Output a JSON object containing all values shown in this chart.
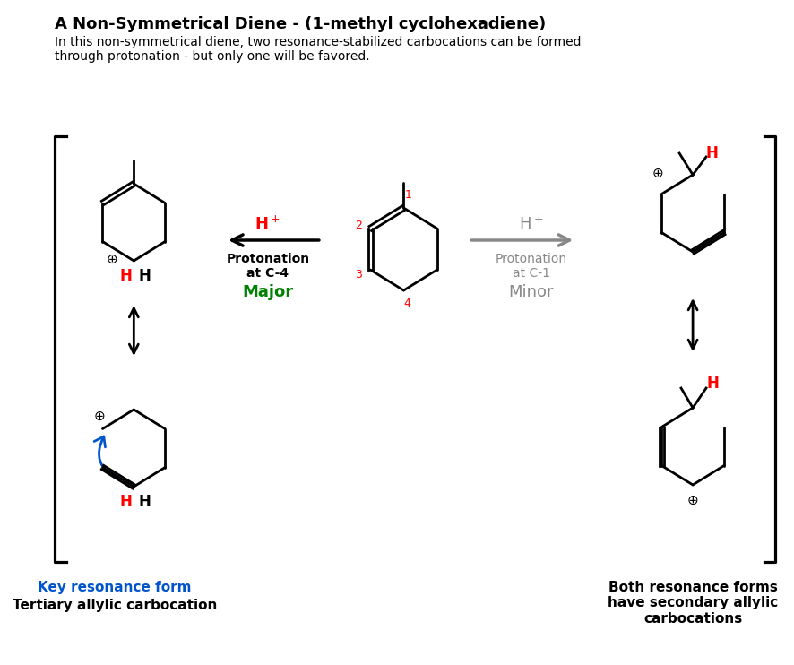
{
  "title": "A Non-Symmetrical Diene - (1-methyl cyclohexadiene)",
  "subtitle": "In this non-symmetrical diene, two resonance-stabilized carbocations can be formed\nthrough protonation - but only one will be favored.",
  "left_label1": "Key resonance form",
  "left_label2": "Tertiary allylic carbocation",
  "right_label": "Both resonance forms\nhave secondary allylic\ncarbocations",
  "color_red": "#FF0000",
  "color_green": "#008000",
  "color_gray": "#888888",
  "color_blue": "#0055CC",
  "color_black": "#000000",
  "color_white": "#FFFFFF",
  "bg_color": "#FFFFFF"
}
